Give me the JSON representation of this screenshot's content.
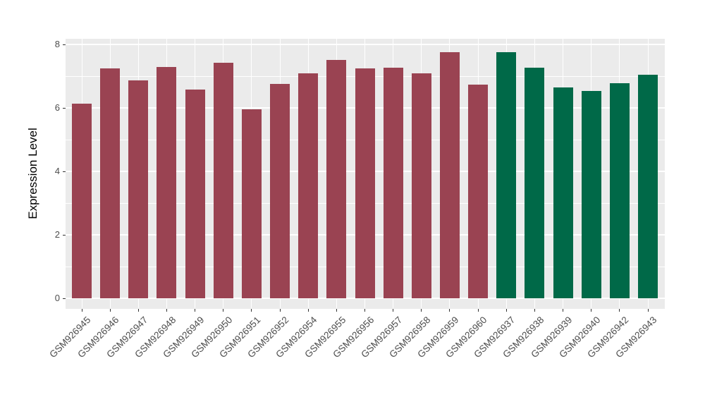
{
  "figure": {
    "background_color": "#FFFFFF",
    "panel_background_color": "#EBEBEB",
    "gridline_color": "#FFFFFF",
    "tick_color": "#333333",
    "tick_label_color": "#4D4D4D",
    "axis_title_color": "#000000"
  },
  "chart_data": {
    "type": "bar",
    "title": "",
    "xlabel": "",
    "ylabel": "Expression Level",
    "ylim": [
      0,
      8.2
    ],
    "grid": true,
    "legend": "none",
    "yticks": [
      {
        "value": 0,
        "label": "0"
      },
      {
        "value": 2,
        "label": "2"
      },
      {
        "value": 4,
        "label": "4"
      },
      {
        "value": 6,
        "label": "6"
      },
      {
        "value": 8,
        "label": "8"
      }
    ],
    "minor_gridline_values": [
      1,
      3,
      5,
      7
    ],
    "bar_colors": {
      "red": "#9A4352",
      "green": "#006948"
    },
    "bars": [
      {
        "label": "GSM926945",
        "value": 6.13,
        "group": "red"
      },
      {
        "label": "GSM926946",
        "value": 7.24,
        "group": "red"
      },
      {
        "label": "GSM926947",
        "value": 6.87,
        "group": "red"
      },
      {
        "label": "GSM926948",
        "value": 7.28,
        "group": "red"
      },
      {
        "label": "GSM926949",
        "value": 6.58,
        "group": "red"
      },
      {
        "label": "GSM926950",
        "value": 7.42,
        "group": "red"
      },
      {
        "label": "GSM926951",
        "value": 5.96,
        "group": "red"
      },
      {
        "label": "GSM926952",
        "value": 6.76,
        "group": "red"
      },
      {
        "label": "GSM926954",
        "value": 7.09,
        "group": "red"
      },
      {
        "label": "GSM926955",
        "value": 7.51,
        "group": "red"
      },
      {
        "label": "GSM926956",
        "value": 7.24,
        "group": "red"
      },
      {
        "label": "GSM926957",
        "value": 7.27,
        "group": "red"
      },
      {
        "label": "GSM926958",
        "value": 7.1,
        "group": "red"
      },
      {
        "label": "GSM926959",
        "value": 7.76,
        "group": "red"
      },
      {
        "label": "GSM926960",
        "value": 6.73,
        "group": "red"
      },
      {
        "label": "GSM926937",
        "value": 7.76,
        "group": "green"
      },
      {
        "label": "GSM926938",
        "value": 7.27,
        "group": "green"
      },
      {
        "label": "GSM926939",
        "value": 6.64,
        "group": "green"
      },
      {
        "label": "GSM926940",
        "value": 6.53,
        "group": "green"
      },
      {
        "label": "GSM926942",
        "value": 6.78,
        "group": "green"
      },
      {
        "label": "GSM926943",
        "value": 7.04,
        "group": "green"
      }
    ]
  }
}
